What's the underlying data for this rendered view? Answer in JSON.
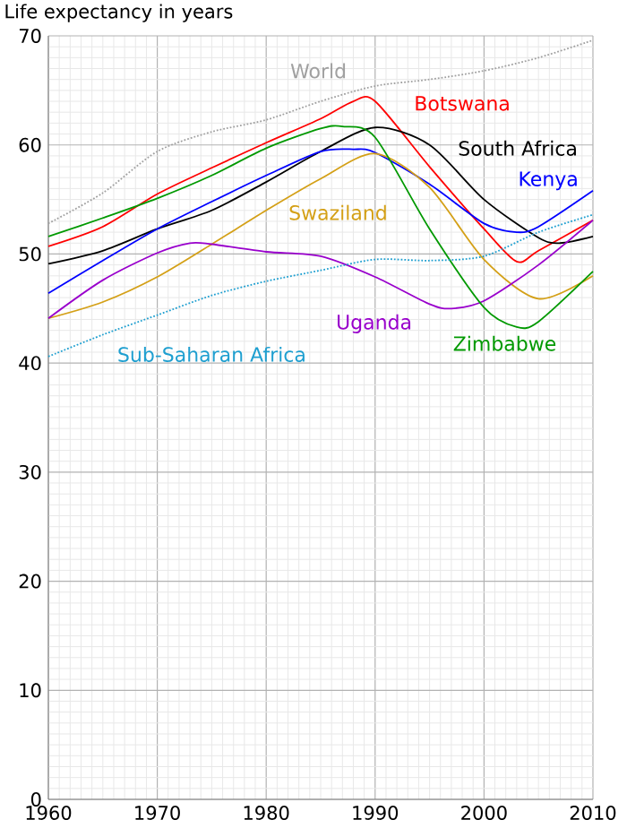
{
  "chart_data": {
    "type": "line",
    "ylabel": "Life expectancy in years",
    "xlim": [
      1960,
      2010
    ],
    "ylim": [
      0,
      70
    ],
    "xticks": [
      1960,
      1970,
      1980,
      1990,
      2000,
      2010
    ],
    "yticks": [
      0,
      10,
      20,
      30,
      40,
      50,
      60,
      70
    ],
    "grid": true,
    "legend": false,
    "marker": "none",
    "series": [
      {
        "name": "World",
        "color": "#a0a0a0",
        "line_style": "dotted",
        "x": [
          1960,
          1965,
          1970,
          1975,
          1980,
          1985,
          1990,
          1995,
          2000,
          2005,
          2010
        ],
        "values": [
          52.8,
          55.6,
          59.4,
          61.2,
          62.3,
          64,
          65.4,
          66,
          66.8,
          68,
          69.6
        ]
      },
      {
        "name": "Botswana",
        "color": "#ff0000",
        "line_style": "solid",
        "x": [
          1960,
          1965,
          1970,
          1975,
          1980,
          1985,
          1988,
          1990,
          1995,
          2000,
          2003,
          2005,
          2010
        ],
        "values": [
          50.7,
          52.5,
          55.5,
          57.9,
          60.2,
          62.4,
          64,
          64,
          58,
          52.3,
          49.3,
          50.3,
          53.1
        ]
      },
      {
        "name": "South Africa",
        "color": "#000000",
        "line_style": "solid",
        "x": [
          1960,
          1965,
          1970,
          1975,
          1980,
          1985,
          1990,
          1995,
          2000,
          2005,
          2007,
          2010
        ],
        "values": [
          49.1,
          50.3,
          52.3,
          54,
          56.6,
          59.4,
          61.6,
          60,
          55,
          51.5,
          51,
          51.6
        ]
      },
      {
        "name": "Kenya",
        "color": "#0000ff",
        "line_style": "solid",
        "x": [
          1960,
          1965,
          1970,
          1975,
          1980,
          1985,
          1988,
          1990,
          1995,
          2000,
          2003,
          2005,
          2010
        ],
        "values": [
          46.4,
          49.4,
          52.3,
          54.8,
          57.2,
          59.4,
          59.6,
          59.3,
          56.4,
          52.8,
          52,
          52.5,
          55.8
        ]
      },
      {
        "name": "Swaziland",
        "color": "#d4a017",
        "line_style": "solid",
        "x": [
          1960,
          1965,
          1970,
          1975,
          1980,
          1985,
          1990,
          1995,
          2000,
          2005,
          2010
        ],
        "values": [
          44.1,
          45.6,
          47.9,
          50.9,
          54,
          56.9,
          59.2,
          56.1,
          49.5,
          45.9,
          48
        ]
      },
      {
        "name": "Uganda",
        "color": "#9900cc",
        "line_style": "solid",
        "x": [
          1960,
          1965,
          1970,
          1973,
          1975,
          1980,
          1985,
          1990,
          1995,
          1997,
          2000,
          2005,
          2010
        ],
        "values": [
          44.1,
          47.6,
          50.1,
          51,
          50.9,
          50.2,
          49.8,
          47.9,
          45.4,
          45,
          45.7,
          49,
          53.1
        ]
      },
      {
        "name": "Zimbabwe",
        "color": "#009900",
        "line_style": "solid",
        "x": [
          1960,
          1965,
          1970,
          1975,
          1980,
          1985,
          1987,
          1990,
          1995,
          2000,
          2003,
          2005,
          2010
        ],
        "values": [
          51.6,
          53.3,
          55.1,
          57.2,
          59.7,
          61.5,
          61.7,
          60.7,
          52.3,
          45.1,
          43.3,
          43.8,
          48.4
        ]
      },
      {
        "name": "Sub-Saharan Africa",
        "color": "#1e9fd0",
        "line_style": "dotted",
        "x": [
          1960,
          1965,
          1970,
          1975,
          1980,
          1985,
          1990,
          1995,
          2000,
          2005,
          2010
        ],
        "values": [
          40.6,
          42.6,
          44.4,
          46.2,
          47.5,
          48.5,
          49.5,
          49.4,
          49.8,
          52,
          53.6
        ]
      }
    ]
  }
}
